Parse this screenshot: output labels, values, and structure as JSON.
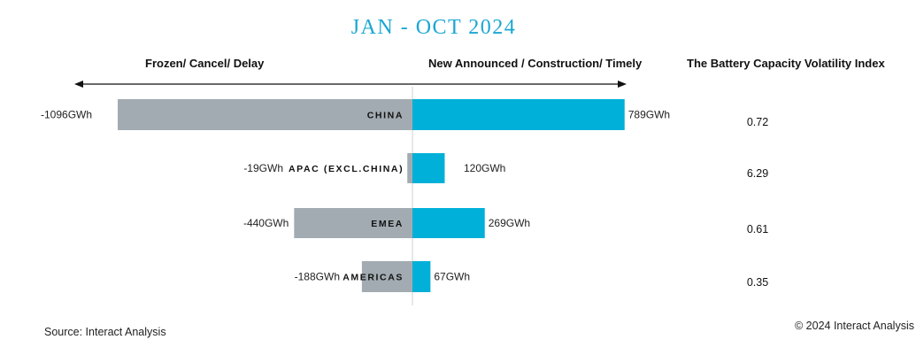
{
  "chart_data": {
    "type": "bar",
    "orientation": "horizontal-diverging",
    "title": "JAN - OCT 2024",
    "left_header": "Frozen/ Cancel/ Delay",
    "right_header": "New Announced / Construction/ Timely",
    "index_header": "The Battery Capacity Volatility Index",
    "categories": [
      "CHINA",
      "APAC (EXCL.CHINA)",
      "EMEA",
      "AMERICAS"
    ],
    "series": [
      {
        "key": "negative",
        "values": [
          -1096,
          -19,
          -440,
          -188
        ],
        "labels": [
          "-1096GWh",
          "-19GWh",
          "-440GWh",
          "-188GWh"
        ],
        "color": "#a2abb1"
      },
      {
        "key": "positive",
        "values": [
          789,
          120,
          269,
          67
        ],
        "labels": [
          "789GWh",
          "120GWh",
          "269GWh",
          "67GWh"
        ],
        "color": "#00b0d8"
      }
    ],
    "volatility_index": [
      "0.72",
      "6.29",
      "0.61",
      "0.35"
    ],
    "unit": "GWh"
  },
  "footer": {
    "source": "Source: Interact Analysis",
    "copyright": "© 2024 Interact Analysis"
  }
}
